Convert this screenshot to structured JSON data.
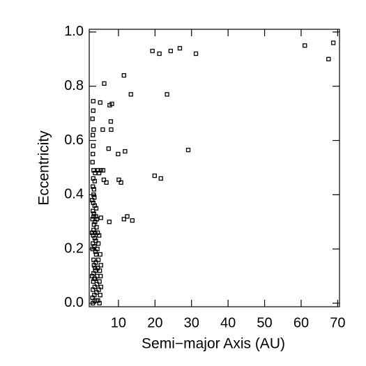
{
  "chart_data": {
    "type": "scatter",
    "x_label": "Semi−major Axis (AU)",
    "y_label": "Eccentricity",
    "color": "#000000",
    "xlim": [
      2,
      70.5
    ],
    "ylim": [
      -0.013,
      1.01
    ],
    "xticks": [
      10,
      20,
      30,
      40,
      50,
      60,
      70
    ],
    "yticks": [
      {
        "value": 0,
        "label": "0.0"
      },
      0.2,
      0.4,
      0.6,
      0.8,
      {
        "value": 1,
        "label": "1.0"
      }
    ],
    "x": [
      19.3,
      21.2,
      24.3,
      26.8,
      31.2,
      61,
      67.5,
      68.8,
      11.5,
      6.1,
      13.4,
      23.3,
      7.6,
      8.2,
      5.0,
      3.1,
      3.2,
      5.7,
      8.0,
      7.9,
      7.3,
      9.9,
      11.8,
      29.1,
      19.9,
      21.6,
      5.8,
      6.7,
      10.1,
      10.7,
      6.0,
      5.2,
      7.5,
      11.5,
      12.4,
      13.8,
      2.9,
      3.0,
      3.1,
      3.2,
      3.3,
      3.4,
      3.5,
      3.6,
      3.7,
      3.8,
      3.9,
      4.0,
      4.1,
      4.2,
      4.3,
      4.4,
      4.5,
      4.6,
      4.8,
      5.0,
      5.2,
      2.9,
      3.0,
      3.1,
      3.2,
      3.3,
      3.4,
      3.5,
      3.6,
      3.7,
      3.8,
      4.0,
      4.2,
      4.5,
      5.0,
      5.2,
      2.9,
      3.0,
      3.1,
      3.2,
      3.0,
      3.1,
      3.2,
      2.9,
      3.0,
      3.1,
      3.0,
      2.9,
      3.1,
      3.3,
      3.5,
      3.4,
      3.3,
      3.6,
      3.8,
      4.1,
      3.5,
      3.6,
      4.4,
      4.7,
      5.2,
      3.2,
      4.0,
      3.5,
      3.0,
      4.8,
      5.1,
      4.9,
      4.7,
      4.3,
      3.9,
      3.2,
      3.4,
      3.6,
      2.8,
      2.8,
      2.8
    ],
    "values": [
      0.93,
      0.92,
      0.93,
      0.94,
      0.92,
      0.95,
      0.9,
      0.96,
      0.84,
      0.81,
      0.77,
      0.77,
      0.73,
      0.735,
      0.74,
      0.745,
      0.64,
      0.64,
      0.64,
      0.67,
      0.57,
      0.55,
      0.56,
      0.565,
      0.47,
      0.46,
      0.49,
      0.445,
      0.455,
      0.445,
      0.455,
      0.315,
      0.3,
      0.31,
      0.32,
      0.305,
      0.02,
      0.05,
      0.08,
      0.11,
      0.14,
      0.03,
      0.06,
      0.09,
      0.12,
      0.15,
      0.18,
      0.04,
      0.07,
      0.1,
      0.13,
      0.01,
      0.16,
      0.05,
      0.08,
      0.03,
      0.06,
      0.2,
      0.22,
      0.25,
      0.27,
      0.29,
      0.21,
      0.24,
      0.26,
      0.19,
      0.23,
      0.28,
      0.2,
      0.22,
      0.18,
      0.14,
      0.31,
      0.34,
      0.37,
      0.4,
      0.43,
      0.46,
      0.49,
      0.52,
      0.55,
      0.58,
      0.62,
      0.68,
      0.71,
      0.33,
      0.36,
      0.39,
      0.42,
      0.3,
      0.32,
      0.31,
      0.45,
      0.48,
      0.49,
      0.48,
      0.49,
      0.32,
      0.01,
      0.01,
      0.0,
      0.0,
      0.1,
      0.12,
      0.25,
      0.26,
      0.35,
      0.16,
      0.09,
      0.13,
      0.1,
      0.26,
      0.38
    ]
  }
}
